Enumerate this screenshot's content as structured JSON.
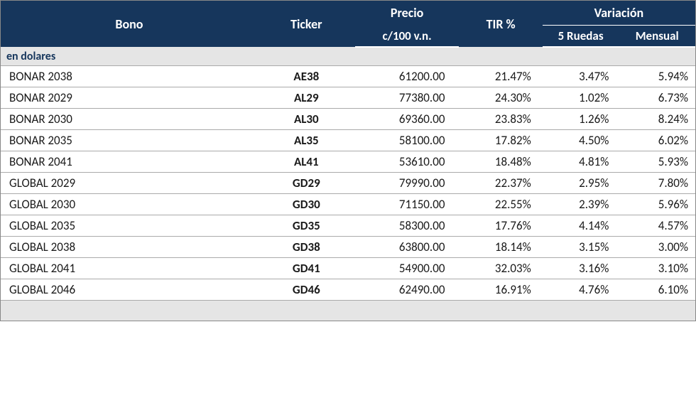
{
  "styling": {
    "header_bg": "#16365c",
    "header_text_color": "#ffffff",
    "section_bg": "#e5e5e5",
    "section_text_color": "#16365c",
    "body_text_color": "#1a1a1a",
    "border_color": "#aaaaaa",
    "header_fontsize": 18,
    "subheader_fontsize": 17,
    "body_fontsize": 17,
    "font_family": "Calibri, Arial, sans-serif"
  },
  "headers": {
    "bono": "Bono",
    "ticker": "Ticker",
    "precio_line1": "Precio",
    "precio_line2": "c/100 v.n.",
    "tir": "TIR %",
    "variacion": "Variación",
    "var_5ruedas": "5 Ruedas",
    "var_mensual": "Mensual"
  },
  "section": {
    "label": "en dolares"
  },
  "columns": [
    "bono",
    "ticker",
    "precio",
    "tir",
    "var5",
    "varm"
  ],
  "rows": [
    {
      "bono": "BONAR 2038",
      "ticker": "AE38",
      "precio": "61200.00",
      "tir": "21.47%",
      "var5": "3.47%",
      "varm": "5.94%"
    },
    {
      "bono": "BONAR 2029",
      "ticker": "AL29",
      "precio": "77380.00",
      "tir": "24.30%",
      "var5": "1.02%",
      "varm": "6.73%"
    },
    {
      "bono": "BONAR 2030",
      "ticker": "AL30",
      "precio": "69360.00",
      "tir": "23.83%",
      "var5": "1.26%",
      "varm": "8.24%"
    },
    {
      "bono": "BONAR 2035",
      "ticker": "AL35",
      "precio": "58100.00",
      "tir": "17.82%",
      "var5": "4.50%",
      "varm": "6.02%"
    },
    {
      "bono": "BONAR 2041",
      "ticker": "AL41",
      "precio": "53610.00",
      "tir": "18.48%",
      "var5": "4.81%",
      "varm": "5.93%"
    },
    {
      "bono": "GLOBAL 2029",
      "ticker": "GD29",
      "precio": "79990.00",
      "tir": "22.37%",
      "var5": "2.95%",
      "varm": "7.80%"
    },
    {
      "bono": "GLOBAL 2030",
      "ticker": "GD30",
      "precio": "71150.00",
      "tir": "22.55%",
      "var5": "2.39%",
      "varm": "5.96%"
    },
    {
      "bono": "GLOBAL 2035",
      "ticker": "GD35",
      "precio": "58300.00",
      "tir": "17.76%",
      "var5": "4.14%",
      "varm": "4.57%"
    },
    {
      "bono": "GLOBAL 2038",
      "ticker": "GD38",
      "precio": "63800.00",
      "tir": "18.14%",
      "var5": "3.15%",
      "varm": "3.00%"
    },
    {
      "bono": "GLOBAL 2041",
      "ticker": "GD41",
      "precio": "54900.00",
      "tir": "32.03%",
      "var5": "3.16%",
      "varm": "3.10%"
    },
    {
      "bono": "GLOBAL 2046",
      "ticker": "GD46",
      "precio": "62490.00",
      "tir": "16.91%",
      "var5": "4.76%",
      "varm": "6.10%"
    }
  ]
}
